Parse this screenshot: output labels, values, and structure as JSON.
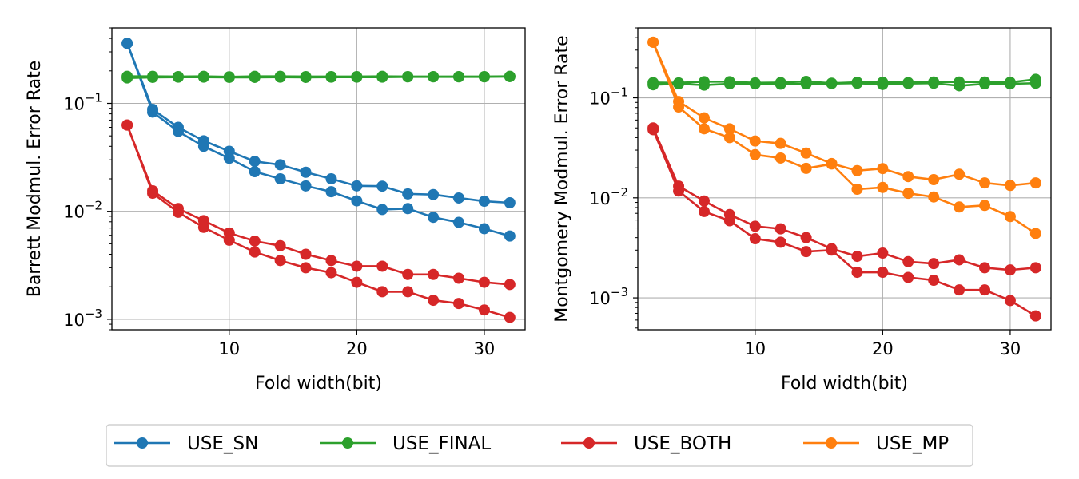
{
  "chart_data": [
    {
      "type": "line",
      "title": "",
      "xlabel": "Fold width(bit)",
      "ylabel": "Barrett Modmul. Error Rate",
      "yscale": "log",
      "xlim": [
        0.8,
        33.2
      ],
      "ylim": [
        0.0008,
        0.5
      ],
      "xticks": [
        10,
        20,
        30
      ],
      "yticks": [
        {
          "value": 0.001,
          "base": "10",
          "exp": "−3"
        },
        {
          "value": 0.01,
          "base": "10",
          "exp": "−2"
        },
        {
          "value": 0.1,
          "base": "10",
          "exp": "−1"
        }
      ],
      "grid": true,
      "x": [
        2,
        4,
        6,
        8,
        10,
        12,
        14,
        16,
        18,
        20,
        22,
        24,
        26,
        28,
        30,
        32
      ],
      "series": [
        {
          "name": "USE_SN",
          "color": "#1f77b4",
          "values": [
            0.36,
            0.088,
            0.06,
            0.045,
            0.036,
            0.029,
            0.027,
            0.023,
            0.02,
            0.0172,
            0.0171,
            0.0145,
            0.0143,
            0.0133,
            0.0124,
            0.012
          ]
        },
        {
          "name": "USE_SN",
          "color": "#1f77b4",
          "values": [
            0.36,
            0.083,
            0.055,
            0.04,
            0.031,
            0.0233,
            0.02,
            0.0172,
            0.0152,
            0.0125,
            0.0104,
            0.0106,
            0.0088,
            0.0079,
            0.0069,
            0.0059
          ]
        },
        {
          "name": "USE_FINAL",
          "color": "#2ca02c",
          "values": [
            0.178,
            0.178,
            0.177,
            0.178,
            0.176,
            0.178,
            0.178,
            0.177,
            0.177,
            0.177,
            0.178,
            0.177,
            0.177,
            0.177,
            0.177,
            0.178
          ]
        },
        {
          "name": "USE_FINAL",
          "color": "#2ca02c",
          "values": [
            0.172,
            0.174,
            0.175,
            0.175,
            0.174,
            0.174,
            0.175,
            0.174,
            0.175,
            0.175,
            0.175,
            0.176,
            0.176,
            0.176,
            0.176,
            0.177
          ]
        },
        {
          "name": "USE_BOTH",
          "color": "#d62728",
          "values": [
            0.063,
            0.0155,
            0.0106,
            0.0082,
            0.0063,
            0.0053,
            0.0048,
            0.004,
            0.0035,
            0.0031,
            0.0031,
            0.0026,
            0.0026,
            0.0024,
            0.0022,
            0.0021
          ]
        },
        {
          "name": "USE_BOTH",
          "color": "#d62728",
          "values": [
            0.063,
            0.0147,
            0.0098,
            0.0071,
            0.0054,
            0.0042,
            0.0035,
            0.003,
            0.0027,
            0.0022,
            0.0018,
            0.0018,
            0.0015,
            0.0014,
            0.00122,
            0.00104
          ]
        }
      ]
    },
    {
      "type": "line",
      "title": "",
      "xlabel": "Fold width(bit)",
      "ylabel": "Montgomery Modmul. Error Rate",
      "yscale": "log",
      "xlim": [
        0.8,
        33.2
      ],
      "ylim": [
        0.00048,
        0.5
      ],
      "xticks": [
        10,
        20,
        30
      ],
      "yticks": [
        {
          "value": 0.001,
          "base": "10",
          "exp": "−3"
        },
        {
          "value": 0.01,
          "base": "10",
          "exp": "−2"
        },
        {
          "value": 0.1,
          "base": "10",
          "exp": "−1"
        }
      ],
      "grid": true,
      "x": [
        2,
        4,
        6,
        8,
        10,
        12,
        14,
        16,
        18,
        20,
        22,
        24,
        26,
        28,
        30,
        32
      ],
      "series": [
        {
          "name": "USE_FINAL",
          "color": "#2ca02c",
          "values": [
            0.142,
            0.141,
            0.145,
            0.145,
            0.141,
            0.142,
            0.146,
            0.14,
            0.143,
            0.143,
            0.142,
            0.144,
            0.144,
            0.144,
            0.143,
            0.153
          ]
        },
        {
          "name": "USE_FINAL",
          "color": "#2ca02c",
          "values": [
            0.135,
            0.138,
            0.134,
            0.138,
            0.138,
            0.137,
            0.138,
            0.139,
            0.14,
            0.136,
            0.139,
            0.14,
            0.132,
            0.138,
            0.138,
            0.14
          ]
        },
        {
          "name": "USE_MP",
          "color": "#ff7f0e",
          "values": [
            0.36,
            0.092,
            0.063,
            0.049,
            0.037,
            0.035,
            0.028,
            0.022,
            0.0187,
            0.0196,
            0.0163,
            0.0152,
            0.0172,
            0.0141,
            0.0133,
            0.0141
          ]
        },
        {
          "name": "USE_MP",
          "color": "#ff7f0e",
          "values": [
            0.36,
            0.081,
            0.049,
            0.04,
            0.027,
            0.025,
            0.0197,
            0.0218,
            0.0122,
            0.0127,
            0.0111,
            0.0102,
            0.0081,
            0.0084,
            0.0065,
            0.0044
          ]
        },
        {
          "name": "USE_BOTH",
          "color": "#d62728",
          "values": [
            0.05,
            0.0131,
            0.0093,
            0.0068,
            0.0052,
            0.0049,
            0.004,
            0.0031,
            0.0026,
            0.0028,
            0.0023,
            0.0022,
            0.0024,
            0.002,
            0.0019,
            0.002
          ]
        },
        {
          "name": "USE_BOTH",
          "color": "#d62728",
          "values": [
            0.048,
            0.0117,
            0.0073,
            0.0059,
            0.0039,
            0.0036,
            0.0029,
            0.003,
            0.0018,
            0.0018,
            0.0016,
            0.0015,
            0.0012,
            0.0012,
            0.00094,
            0.00066
          ]
        }
      ]
    }
  ],
  "legend": {
    "placement": "bottom-center",
    "entries": [
      {
        "label": "USE_SN",
        "color": "#1f77b4"
      },
      {
        "label": "USE_FINAL",
        "color": "#2ca02c"
      },
      {
        "label": "USE_BOTH",
        "color": "#d62728"
      },
      {
        "label": "USE_MP",
        "color": "#ff7f0e"
      }
    ]
  }
}
